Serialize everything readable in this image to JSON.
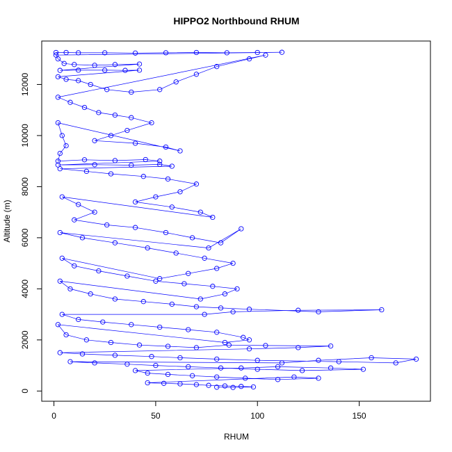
{
  "chart_data": {
    "type": "scatter",
    "title": "HIPPO2 Northbound RHUM",
    "xlabel": "RHUM",
    "ylabel": "Altitude (m)",
    "xlim": [
      -6,
      185
    ],
    "ylim": [
      -400,
      13700
    ],
    "x_ticks": [
      0,
      50,
      100,
      150
    ],
    "y_ticks": [
      0,
      2000,
      4000,
      6000,
      8000,
      10000,
      12000
    ],
    "grid": false,
    "legend": "none",
    "marker": "open-circle",
    "connect_points": true,
    "color": "#0000ff",
    "series": [
      {
        "points": [
          [
            1,
            13250
          ],
          [
            6,
            13250
          ],
          [
            12,
            13240
          ],
          [
            25,
            13240
          ],
          [
            40,
            13230
          ],
          [
            55,
            13240
          ],
          [
            70,
            13250
          ],
          [
            85,
            13240
          ],
          [
            100,
            13250
          ],
          [
            112,
            13260
          ],
          [
            1,
            13150
          ],
          [
            2,
            13000
          ],
          [
            5,
            12820
          ],
          [
            10,
            12780
          ],
          [
            20,
            12750
          ],
          [
            30,
            12780
          ],
          [
            42,
            12800
          ],
          [
            3,
            12550
          ],
          [
            12,
            12560
          ],
          [
            25,
            12560
          ],
          [
            35,
            12550
          ],
          [
            42,
            12560
          ],
          [
            2,
            12300
          ],
          [
            6,
            12200
          ],
          [
            12,
            12150
          ],
          [
            18,
            12000
          ],
          [
            26,
            11800
          ],
          [
            38,
            11700
          ],
          [
            52,
            11800
          ],
          [
            60,
            12100
          ],
          [
            70,
            12400
          ],
          [
            80,
            12700
          ],
          [
            96,
            13000
          ],
          [
            104,
            13150
          ],
          [
            2,
            11500
          ],
          [
            8,
            11300
          ],
          [
            15,
            11100
          ],
          [
            22,
            10900
          ],
          [
            30,
            10800
          ],
          [
            38,
            10700
          ],
          [
            48,
            10500
          ],
          [
            36,
            10200
          ],
          [
            28,
            10000
          ],
          [
            20,
            9800
          ],
          [
            40,
            9700
          ],
          [
            55,
            9550
          ],
          [
            62,
            9400
          ],
          [
            2,
            10500
          ],
          [
            4,
            10000
          ],
          [
            6,
            9600
          ],
          [
            3,
            9300
          ],
          [
            2,
            9000
          ],
          [
            15,
            9050
          ],
          [
            30,
            9020
          ],
          [
            45,
            9060
          ],
          [
            52,
            9000
          ],
          [
            2,
            8850
          ],
          [
            20,
            8860
          ],
          [
            38,
            8840
          ],
          [
            52,
            8870
          ],
          [
            58,
            8800
          ],
          [
            3,
            8700
          ],
          [
            16,
            8600
          ],
          [
            28,
            8500
          ],
          [
            44,
            8400
          ],
          [
            56,
            8300
          ],
          [
            70,
            8100
          ],
          [
            62,
            7800
          ],
          [
            50,
            7600
          ],
          [
            40,
            7400
          ],
          [
            58,
            7200
          ],
          [
            72,
            7000
          ],
          [
            78,
            6800
          ],
          [
            4,
            7600
          ],
          [
            12,
            7300
          ],
          [
            20,
            7000
          ],
          [
            10,
            6700
          ],
          [
            26,
            6500
          ],
          [
            40,
            6400
          ],
          [
            55,
            6200
          ],
          [
            68,
            6000
          ],
          [
            82,
            5800
          ],
          [
            92,
            6350
          ],
          [
            76,
            5600
          ],
          [
            3,
            6200
          ],
          [
            14,
            6000
          ],
          [
            30,
            5800
          ],
          [
            46,
            5600
          ],
          [
            60,
            5400
          ],
          [
            74,
            5200
          ],
          [
            88,
            5000
          ],
          [
            80,
            4800
          ],
          [
            66,
            4600
          ],
          [
            52,
            4400
          ],
          [
            4,
            5200
          ],
          [
            10,
            4900
          ],
          [
            22,
            4700
          ],
          [
            36,
            4500
          ],
          [
            50,
            4300
          ],
          [
            64,
            4200
          ],
          [
            78,
            4100
          ],
          [
            90,
            4000
          ],
          [
            84,
            3800
          ],
          [
            72,
            3600
          ],
          [
            3,
            4300
          ],
          [
            8,
            4000
          ],
          [
            18,
            3800
          ],
          [
            30,
            3600
          ],
          [
            44,
            3500
          ],
          [
            58,
            3400
          ],
          [
            70,
            3300
          ],
          [
            82,
            3250
          ],
          [
            96,
            3200
          ],
          [
            130,
            3100
          ],
          [
            161,
            3180
          ],
          [
            120,
            3160
          ],
          [
            88,
            3100
          ],
          [
            74,
            3000
          ],
          [
            4,
            3000
          ],
          [
            12,
            2800
          ],
          [
            24,
            2700
          ],
          [
            38,
            2600
          ],
          [
            52,
            2500
          ],
          [
            66,
            2400
          ],
          [
            80,
            2300
          ],
          [
            93,
            2100
          ],
          [
            96,
            2000
          ],
          [
            84,
            1900
          ],
          [
            2,
            2600
          ],
          [
            6,
            2200
          ],
          [
            16,
            2000
          ],
          [
            28,
            1900
          ],
          [
            42,
            1800
          ],
          [
            56,
            1750
          ],
          [
            70,
            1700
          ],
          [
            86,
            1800
          ],
          [
            104,
            1780
          ],
          [
            136,
            1760
          ],
          [
            120,
            1700
          ],
          [
            96,
            1650
          ],
          [
            3,
            1500
          ],
          [
            14,
            1450
          ],
          [
            30,
            1400
          ],
          [
            48,
            1350
          ],
          [
            62,
            1300
          ],
          [
            80,
            1250
          ],
          [
            100,
            1200
          ],
          [
            140,
            1150
          ],
          [
            168,
            1100
          ],
          [
            178,
            1250
          ],
          [
            156,
            1300
          ],
          [
            130,
            1200
          ],
          [
            112,
            1100
          ],
          [
            8,
            1150
          ],
          [
            20,
            1100
          ],
          [
            36,
            1050
          ],
          [
            50,
            1000
          ],
          [
            66,
            950
          ],
          [
            82,
            900
          ],
          [
            100,
            850
          ],
          [
            122,
            800
          ],
          [
            152,
            850
          ],
          [
            136,
            900
          ],
          [
            110,
            950
          ],
          [
            92,
            900
          ],
          [
            40,
            800
          ],
          [
            46,
            700
          ],
          [
            56,
            650
          ],
          [
            68,
            600
          ],
          [
            80,
            550
          ],
          [
            94,
            500
          ],
          [
            110,
            450
          ],
          [
            130,
            500
          ],
          [
            118,
            550
          ],
          [
            46,
            320
          ],
          [
            54,
            300
          ],
          [
            62,
            280
          ],
          [
            70,
            250
          ],
          [
            76,
            220
          ],
          [
            84,
            200
          ],
          [
            92,
            180
          ],
          [
            98,
            160
          ],
          [
            88,
            140
          ],
          [
            80,
            150
          ]
        ]
      }
    ]
  }
}
